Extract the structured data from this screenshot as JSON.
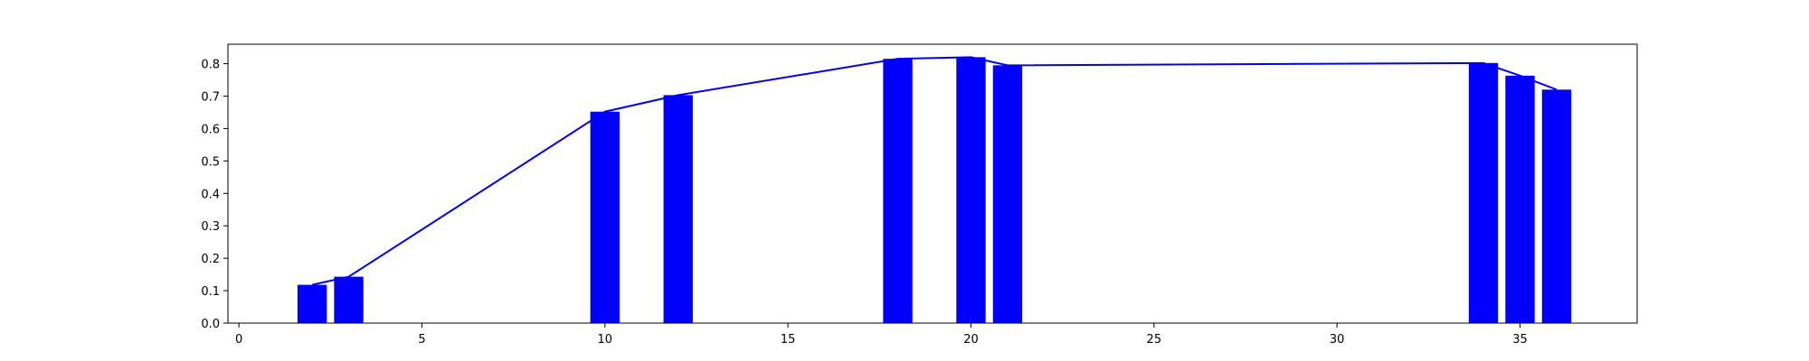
{
  "chart_data": {
    "type": "bar",
    "title": "",
    "xlabel": "",
    "ylabel": "",
    "x": [
      2,
      3,
      10,
      12,
      18,
      20,
      21,
      34,
      35,
      36
    ],
    "values": [
      0.118,
      0.143,
      0.652,
      0.703,
      0.815,
      0.82,
      0.795,
      0.802,
      0.763,
      0.72
    ],
    "overlay_line": {
      "type": "line",
      "x": [
        2,
        3,
        10,
        12,
        18,
        20,
        21,
        34,
        35,
        36
      ],
      "values": [
        0.118,
        0.143,
        0.652,
        0.703,
        0.815,
        0.82,
        0.795,
        0.802,
        0.763,
        0.72
      ]
    },
    "bar_width": 0.8,
    "xlim": [
      -0.3,
      38.2
    ],
    "ylim": [
      0,
      0.86
    ],
    "xticks": [
      0,
      5,
      10,
      15,
      20,
      25,
      30,
      35
    ],
    "xtick_labels": [
      "0",
      "5",
      "10",
      "15",
      "20",
      "25",
      "30",
      "35"
    ],
    "yticks": [
      0.0,
      0.1,
      0.2,
      0.3,
      0.4,
      0.5,
      0.6,
      0.7,
      0.8
    ],
    "ytick_labels": [
      "0.0",
      "0.1",
      "0.2",
      "0.3",
      "0.4",
      "0.5",
      "0.6",
      "0.7",
      "0.8"
    ],
    "grid": false,
    "legend": "none",
    "colors": {
      "bars": "#0000ff",
      "line": "#0000ff",
      "axes": "#000000"
    }
  }
}
